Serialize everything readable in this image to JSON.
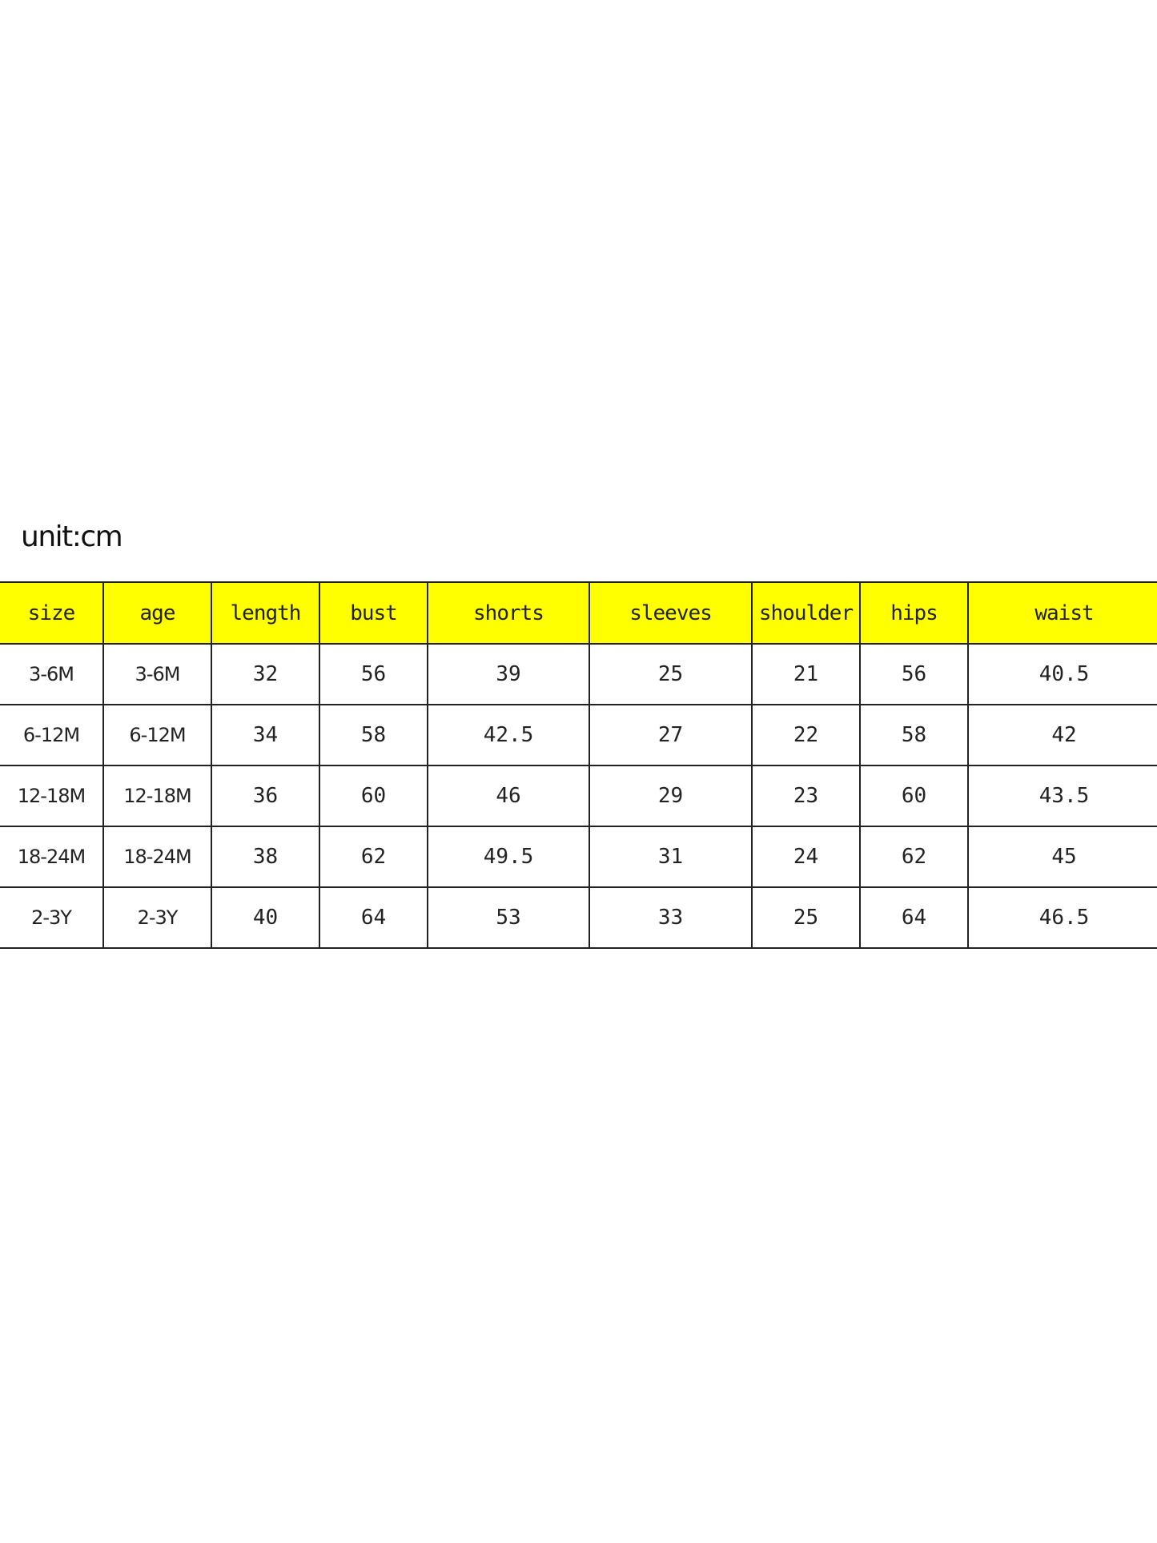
{
  "unit_label": "unit:cm",
  "header_color": "#ffff00",
  "columns": [
    "size",
    "age",
    "length",
    "bust",
    "shorts",
    "sleeves",
    "shoulder",
    "hips",
    "waist"
  ],
  "rows": [
    [
      "3-6M",
      "3-6M",
      "32",
      "56",
      "39",
      "25",
      "21",
      "56",
      "40.5"
    ],
    [
      "6-12M",
      "6-12M",
      "34",
      "58",
      "42.5",
      "27",
      "22",
      "58",
      "42"
    ],
    [
      "12-18M",
      "12-18M",
      "36",
      "60",
      "46",
      "29",
      "23",
      "60",
      "43.5"
    ],
    [
      "18-24M",
      "18-24M",
      "38",
      "62",
      "49.5",
      "31",
      "24",
      "62",
      "45"
    ],
    [
      "2-3Y",
      "2-3Y",
      "40",
      "64",
      "53",
      "33",
      "25",
      "64",
      "46.5"
    ]
  ]
}
